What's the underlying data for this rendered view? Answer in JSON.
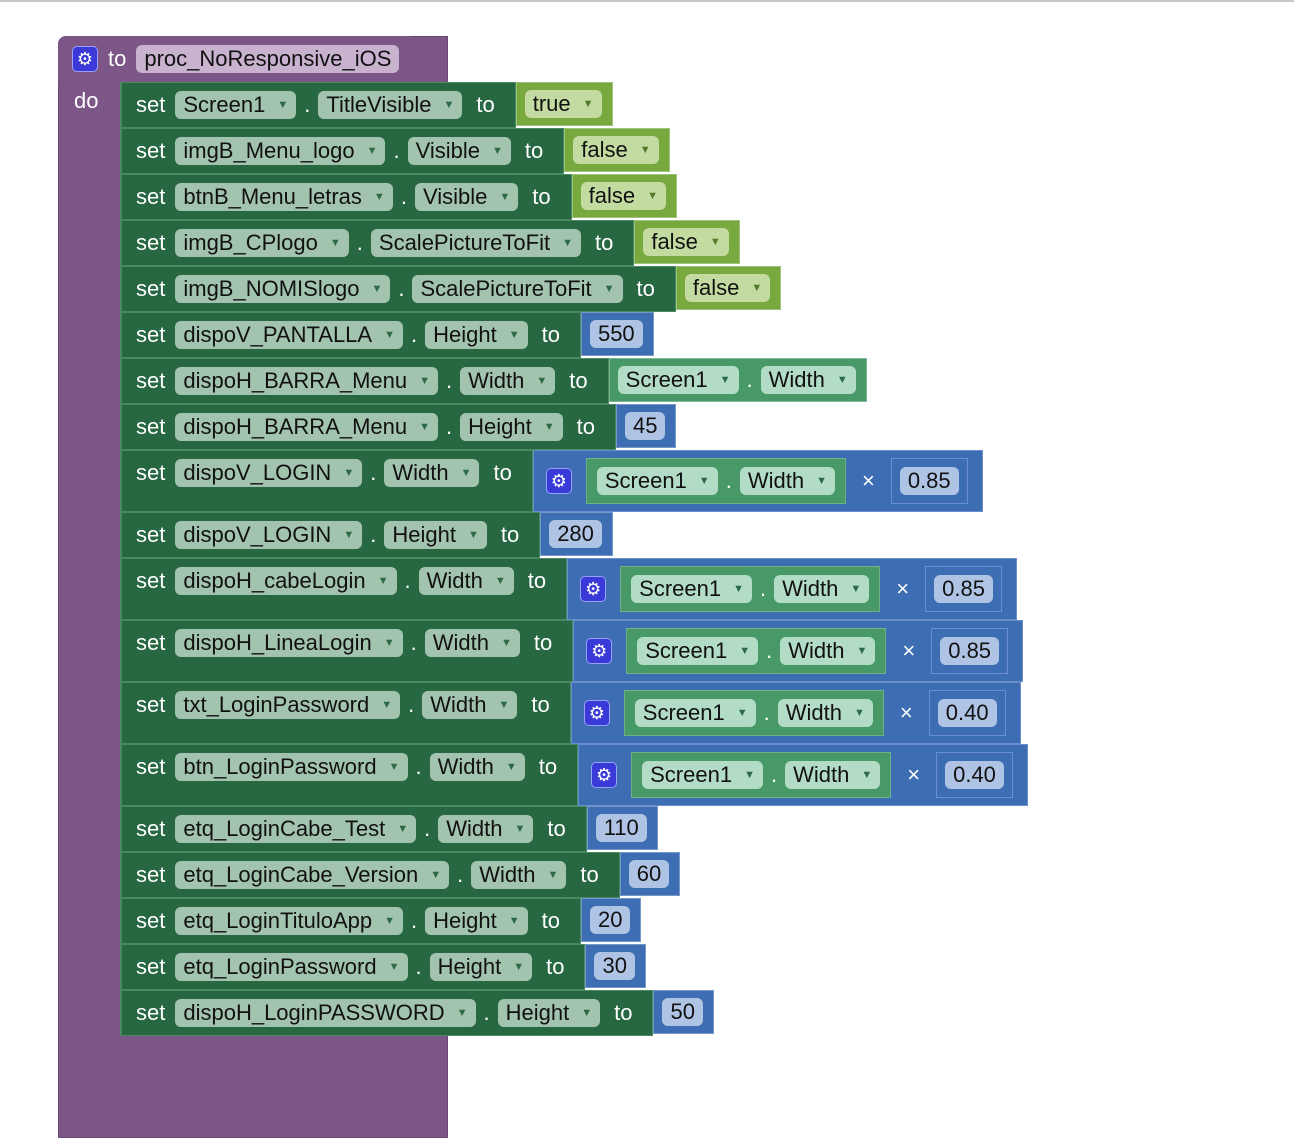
{
  "procedure": {
    "to_label": "to",
    "name": "proc_NoResponsive_iOS",
    "do_label": "do",
    "icon": "gear-icon"
  },
  "labels": {
    "set": "set",
    "dot": ".",
    "to": "to",
    "times": "×"
  },
  "colors": {
    "procedure": "#7b5687",
    "setter": "#276742",
    "boolean": "#77a93f",
    "math": "#3d6db2",
    "getter": "#479a67"
  },
  "rows": [
    {
      "component": "Screen1",
      "property": "TitleVisible",
      "type": "bool",
      "value": "true"
    },
    {
      "component": "imgB_Menu_logo",
      "property": "Visible",
      "type": "bool",
      "value": "false"
    },
    {
      "component": "btnB_Menu_letras",
      "property": "Visible",
      "type": "bool",
      "value": "false"
    },
    {
      "component": "imgB_CPlogo",
      "property": "ScalePictureToFit",
      "type": "bool",
      "value": "false"
    },
    {
      "component": "imgB_NOMISlogo",
      "property": "ScalePictureToFit",
      "type": "bool",
      "value": "false"
    },
    {
      "component": "dispoV_PANTALLA",
      "property": "Height",
      "type": "num",
      "value": "550"
    },
    {
      "component": "dispoH_BARRA_Menu",
      "property": "Width",
      "type": "get",
      "getComponent": "Screen1",
      "getProperty": "Width"
    },
    {
      "component": "dispoH_BARRA_Menu",
      "property": "Height",
      "type": "num",
      "value": "45"
    },
    {
      "component": "dispoV_LOGIN",
      "property": "Width",
      "type": "mult",
      "getComponent": "Screen1",
      "getProperty": "Width",
      "value": "0.85"
    },
    {
      "component": "dispoV_LOGIN",
      "property": "Height",
      "type": "num",
      "value": "280"
    },
    {
      "component": "dispoH_cabeLogin",
      "property": "Width",
      "type": "mult",
      "getComponent": "Screen1",
      "getProperty": "Width",
      "value": "0.85"
    },
    {
      "component": "dispoH_LineaLogin",
      "property": "Width",
      "type": "mult",
      "getComponent": "Screen1",
      "getProperty": "Width",
      "value": "0.85"
    },
    {
      "component": "txt_LoginPassword",
      "property": "Width",
      "type": "mult",
      "getComponent": "Screen1",
      "getProperty": "Width",
      "value": "0.40"
    },
    {
      "component": "btn_LoginPassword",
      "property": "Width",
      "type": "mult",
      "getComponent": "Screen1",
      "getProperty": "Width",
      "value": "0.40"
    },
    {
      "component": "etq_LoginCabe_Test",
      "property": "Width",
      "type": "num",
      "value": "110"
    },
    {
      "component": "etq_LoginCabe_Version",
      "property": "Width",
      "type": "num",
      "value": "60"
    },
    {
      "component": "etq_LoginTituloApp",
      "property": "Height",
      "type": "num",
      "value": "20"
    },
    {
      "component": "etq_LoginPassword",
      "property": "Height",
      "type": "num",
      "value": "30"
    },
    {
      "component": "dispoH_LoginPASSWORD",
      "property": "Height",
      "type": "num",
      "value": "50"
    }
  ]
}
